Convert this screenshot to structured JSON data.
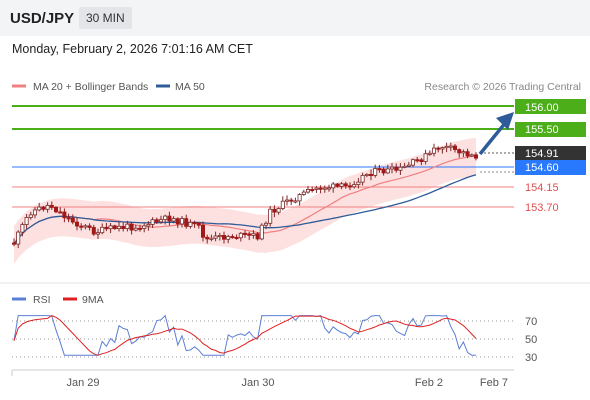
{
  "header": {
    "symbol": "USD/JPY",
    "timeframe": "30 MIN"
  },
  "datetime": "Monday, February 2, 2026 7:01:16 AM CET",
  "legend": {
    "ma20": "MA 20 + Bollinger Bands",
    "ma50": "MA 50"
  },
  "credit": "Research © 2026 Trading Central",
  "colors": {
    "resistance": "#4caf1a",
    "current": "#333333",
    "pivot": "#2979ff",
    "support": "#f08080",
    "ma20": "#f08080",
    "ma50": "#2e5c99",
    "rsi": "#5b7fd6",
    "rsi_ma": "#e02020",
    "arrow": "#2e5c99"
  },
  "levels": [
    {
      "value": "156.00",
      "type": "resistance"
    },
    {
      "value": "155.50",
      "type": "resistance"
    },
    {
      "value": "154.91",
      "type": "current"
    },
    {
      "value": "154.60",
      "type": "pivot"
    },
    {
      "value": "154.15",
      "type": "support"
    },
    {
      "value": "153.70",
      "type": "support"
    }
  ],
  "rsi_panel": {
    "legend": {
      "rsi": "RSI",
      "ma": "9MA"
    },
    "ticks": [
      "70",
      "50",
      "30"
    ]
  },
  "x_labels": [
    "Jan 29",
    "Jan 30",
    "Feb 2",
    "Feb 7"
  ]
}
